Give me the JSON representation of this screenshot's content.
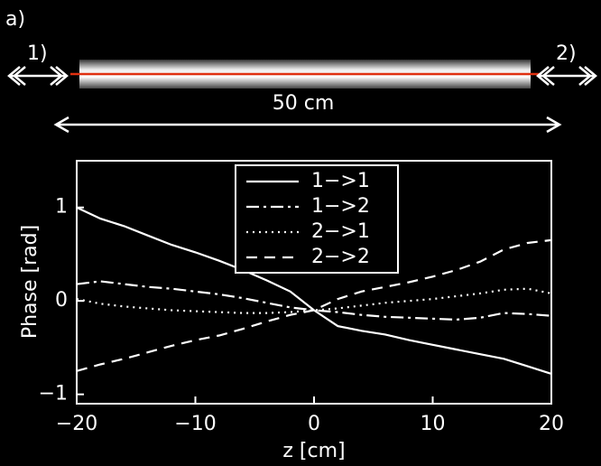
{
  "figure": {
    "panel_label": "a)",
    "port_1": "1)",
    "port_2": "2)",
    "length": "50 cm"
  },
  "chart_data": {
    "type": "line",
    "xlabel": "z [cm]",
    "ylabel": "Phase [rad]",
    "x": [
      -20,
      -18,
      -16,
      -14,
      -12,
      -10,
      -8,
      -6,
      -4,
      -2,
      0,
      2,
      4,
      6,
      8,
      10,
      12,
      14,
      16,
      18,
      20
    ],
    "series": [
      {
        "name": "1−>1",
        "color": "#ffffff",
        "dash": "solid",
        "values": [
          1.0,
          0.88,
          0.8,
          0.7,
          0.6,
          0.52,
          0.43,
          0.33,
          0.22,
          0.1,
          -0.1,
          -0.27,
          -0.32,
          -0.36,
          -0.42,
          -0.47,
          -0.52,
          -0.57,
          -0.62,
          -0.7,
          -0.78
        ]
      },
      {
        "name": "1−>2",
        "color": "#ffffff",
        "dash": "dashdot",
        "values": [
          0.18,
          0.21,
          0.18,
          0.15,
          0.13,
          0.1,
          0.07,
          0.03,
          -0.02,
          -0.07,
          -0.1,
          -0.12,
          -0.15,
          -0.17,
          -0.18,
          -0.19,
          -0.2,
          -0.18,
          -0.13,
          -0.14,
          -0.16
        ]
      },
      {
        "name": "2−>1",
        "color": "#ffffff",
        "dash": "dotted",
        "values": [
          0.02,
          -0.03,
          -0.06,
          -0.08,
          -0.1,
          -0.11,
          -0.12,
          -0.13,
          -0.13,
          -0.12,
          -0.1,
          -0.08,
          -0.05,
          -0.02,
          0.0,
          0.02,
          0.05,
          0.08,
          0.12,
          0.13,
          0.08
        ]
      },
      {
        "name": "2−>2",
        "color": "#ffffff",
        "dash": "dashed",
        "values": [
          -0.75,
          -0.68,
          -0.62,
          -0.55,
          -0.48,
          -0.42,
          -0.37,
          -0.3,
          -0.22,
          -0.15,
          -0.1,
          0.02,
          0.1,
          0.15,
          0.2,
          0.26,
          0.33,
          0.42,
          0.55,
          0.62,
          0.65
        ]
      }
    ],
    "xlim": [
      -20,
      20
    ],
    "xticks": [
      {
        "value": -20,
        "label": "−20"
      },
      {
        "value": -10,
        "label": "−10"
      },
      0,
      10,
      20
    ],
    "ylim": [
      -1.1,
      1.5
    ],
    "yticks": [
      {
        "value": -1,
        "label": "−1"
      },
      0,
      1
    ],
    "grid": false,
    "legend": "upper center"
  }
}
